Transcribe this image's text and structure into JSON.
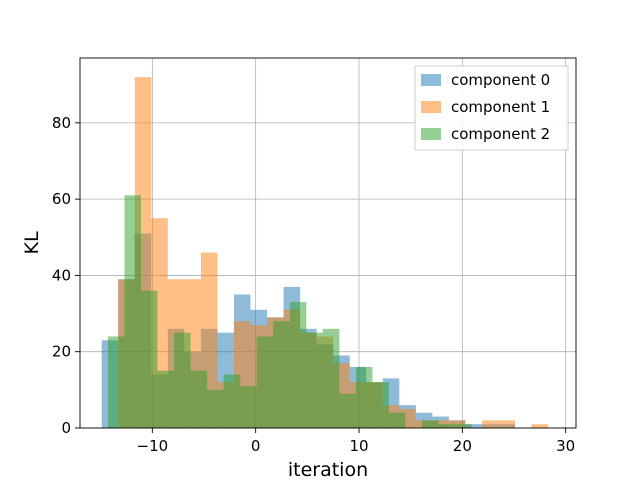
{
  "chart_data": {
    "type": "histogram",
    "title": "",
    "xlabel": "iteration",
    "ylabel": "KL",
    "xlim": [
      -17,
      31
    ],
    "ylim": [
      0,
      97
    ],
    "x_ticks": [
      -10,
      0,
      10,
      20,
      30
    ],
    "y_ticks": [
      0,
      20,
      40,
      60,
      80
    ],
    "x_tick_labels": [
      "−10",
      "0",
      "10",
      "20",
      "30"
    ],
    "y_tick_labels": [
      "0",
      "20",
      "40",
      "60",
      "80"
    ],
    "grid": true,
    "legend_position": "top-right",
    "alpha": 0.5,
    "series": [
      {
        "name": "component 0",
        "color": "#1f77b4",
        "bins": [
          [
            -14.9,
            -13.3,
            23
          ],
          [
            -13.3,
            -11.7,
            39
          ],
          [
            -11.7,
            -10.1,
            51
          ],
          [
            -10.1,
            -8.5,
            14
          ],
          [
            -8.5,
            -6.9,
            26
          ],
          [
            -6.9,
            -5.3,
            20
          ],
          [
            -5.3,
            -3.7,
            26
          ],
          [
            -3.7,
            -2.1,
            25
          ],
          [
            -2.1,
            -0.5,
            35
          ],
          [
            -0.5,
            1.1,
            31
          ],
          [
            1.1,
            2.7,
            29
          ],
          [
            2.7,
            4.3,
            37
          ],
          [
            4.3,
            5.9,
            26
          ],
          [
            5.9,
            7.5,
            22
          ],
          [
            7.5,
            9.1,
            19
          ],
          [
            9.1,
            10.7,
            16
          ],
          [
            10.7,
            12.3,
            12
          ],
          [
            12.3,
            13.9,
            13
          ],
          [
            13.9,
            15.5,
            6
          ],
          [
            15.5,
            17.1,
            4
          ],
          [
            17.1,
            18.7,
            3
          ],
          [
            18.7,
            20.3,
            2
          ],
          [
            20.3,
            21.9,
            1
          ],
          [
            21.9,
            23.5,
            1
          ],
          [
            23.5,
            25.1,
            1
          ]
        ]
      },
      {
        "name": "component 1",
        "color": "#ff7f0e",
        "bins": [
          [
            -13.3,
            -11.7,
            39
          ],
          [
            -11.7,
            -10.1,
            92
          ],
          [
            -10.1,
            -8.5,
            55
          ],
          [
            -8.5,
            -6.9,
            39
          ],
          [
            -6.9,
            -5.3,
            39
          ],
          [
            -5.3,
            -3.7,
            46
          ],
          [
            -3.7,
            -2.1,
            12
          ],
          [
            -2.1,
            -0.5,
            28
          ],
          [
            -0.5,
            1.1,
            27
          ],
          [
            1.1,
            2.7,
            29
          ],
          [
            2.7,
            4.3,
            31
          ],
          [
            4.3,
            5.9,
            25
          ],
          [
            5.9,
            7.5,
            24
          ],
          [
            7.5,
            9.1,
            17
          ],
          [
            9.1,
            10.7,
            12
          ],
          [
            10.7,
            12.3,
            12
          ],
          [
            12.3,
            13.9,
            6
          ],
          [
            13.9,
            15.5,
            5
          ],
          [
            15.5,
            17.1,
            2
          ],
          [
            17.1,
            18.7,
            2
          ],
          [
            18.7,
            20.3,
            2
          ],
          [
            20.3,
            21.9,
            0
          ],
          [
            21.9,
            23.5,
            2
          ],
          [
            23.5,
            25.1,
            2
          ],
          [
            25.1,
            26.7,
            0
          ],
          [
            26.7,
            28.3,
            1
          ]
        ]
      },
      {
        "name": "component 2",
        "color": "#2ca02c",
        "bins": [
          [
            -14.3,
            -12.7,
            24
          ],
          [
            -12.7,
            -11.1,
            61
          ],
          [
            -11.1,
            -9.5,
            36
          ],
          [
            -9.5,
            -7.9,
            15
          ],
          [
            -7.9,
            -6.3,
            25
          ],
          [
            -6.3,
            -4.7,
            15
          ],
          [
            -4.7,
            -3.1,
            10
          ],
          [
            -3.1,
            -1.5,
            14
          ],
          [
            -1.5,
            0.1,
            11
          ],
          [
            0.1,
            1.7,
            24
          ],
          [
            1.7,
            3.3,
            28
          ],
          [
            3.3,
            4.9,
            33
          ],
          [
            4.9,
            6.5,
            25
          ],
          [
            6.5,
            8.1,
            26
          ],
          [
            8.1,
            9.7,
            9
          ],
          [
            9.7,
            11.3,
            16
          ],
          [
            11.3,
            12.9,
            12
          ],
          [
            12.9,
            14.5,
            4
          ],
          [
            14.5,
            16.1,
            0
          ],
          [
            16.1,
            17.7,
            2
          ],
          [
            17.7,
            19.3,
            1
          ],
          [
            19.3,
            20.9,
            1
          ]
        ]
      }
    ]
  }
}
